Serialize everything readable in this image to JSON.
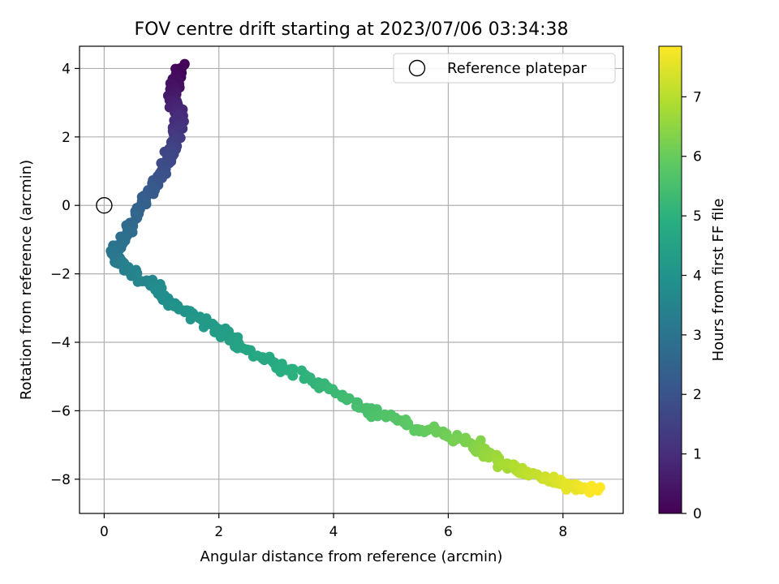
{
  "chart_data": {
    "type": "scatter",
    "title": "FOV centre drift starting at 2023/07/06 03:34:38",
    "xlabel": "Angular distance from reference (arcmin)",
    "ylabel": "Rotation from reference (arcmin)",
    "xlim": [
      -0.43,
      9.05
    ],
    "ylim": [
      -9.0,
      4.65
    ],
    "xticks": [
      0,
      2,
      4,
      6,
      8
    ],
    "yticks": [
      -8,
      -6,
      -4,
      -2,
      0,
      2,
      4
    ],
    "grid": true,
    "legend": {
      "placement": "upper right",
      "entries": [
        "Reference platepar"
      ]
    },
    "reference_point": {
      "label": "Reference platepar",
      "x": 0,
      "y": 0
    },
    "colorbar": {
      "label": "Hours from first FF file",
      "range": [
        0,
        7.85
      ],
      "ticks": [
        0,
        1,
        2,
        3,
        4,
        5,
        6,
        7
      ],
      "colormap": "viridis"
    },
    "path": [
      {
        "x": 1.35,
        "y": 4.1,
        "h": 0.0
      },
      {
        "x": 1.25,
        "y": 3.7,
        "h": 0.2
      },
      {
        "x": 1.2,
        "y": 3.3,
        "h": 0.45
      },
      {
        "x": 1.25,
        "y": 2.9,
        "h": 0.75
      },
      {
        "x": 1.3,
        "y": 2.5,
        "h": 1.0
      },
      {
        "x": 1.25,
        "y": 2.0,
        "h": 1.3
      },
      {
        "x": 1.15,
        "y": 1.5,
        "h": 1.6
      },
      {
        "x": 1.0,
        "y": 0.9,
        "h": 1.9
      },
      {
        "x": 0.75,
        "y": 0.3,
        "h": 2.25
      },
      {
        "x": 0.55,
        "y": -0.35,
        "h": 2.55
      },
      {
        "x": 0.35,
        "y": -0.9,
        "h": 2.8
      },
      {
        "x": 0.15,
        "y": -1.5,
        "h": 3.1
      },
      {
        "x": 0.4,
        "y": -1.85,
        "h": 3.35
      },
      {
        "x": 0.8,
        "y": -2.3,
        "h": 3.65
      },
      {
        "x": 1.2,
        "y": -2.9,
        "h": 3.95
      },
      {
        "x": 1.9,
        "y": -3.5,
        "h": 4.25
      },
      {
        "x": 2.5,
        "y": -4.25,
        "h": 4.6
      },
      {
        "x": 3.3,
        "y": -4.85,
        "h": 4.95
      },
      {
        "x": 4.1,
        "y": -5.5,
        "h": 5.3
      },
      {
        "x": 4.8,
        "y": -6.1,
        "h": 5.6
      },
      {
        "x": 5.5,
        "y": -6.5,
        "h": 5.9
      },
      {
        "x": 6.3,
        "y": -6.9,
        "h": 6.25
      },
      {
        "x": 7.0,
        "y": -7.55,
        "h": 6.75
      },
      {
        "x": 7.6,
        "y": -7.95,
        "h": 7.2
      },
      {
        "x": 8.6,
        "y": -8.35,
        "h": 7.85
      }
    ],
    "point_count": 480,
    "scatter_jitter": {
      "x": 0.09,
      "y": 0.13
    }
  }
}
